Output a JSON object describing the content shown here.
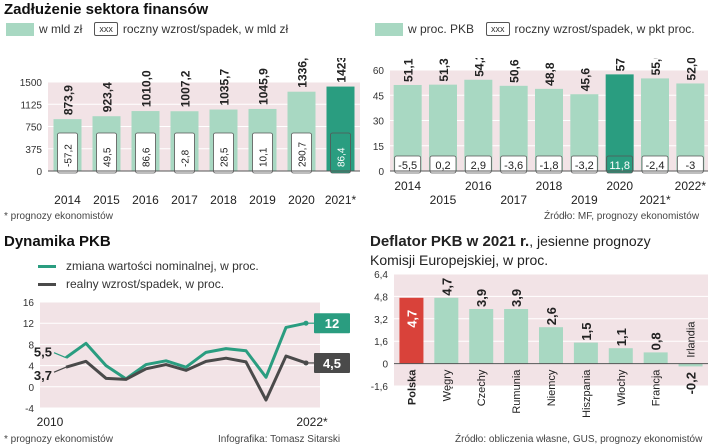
{
  "colors": {
    "bar": "#a8d8c2",
    "highlight": "#2a9d80",
    "band": "#f2e3e6",
    "teal_line": "#2a9d80",
    "gray_line": "#4a4a4a",
    "red_bar": "#d9423a"
  },
  "header": {
    "title": "Zadłużenie sektora finansów"
  },
  "legend_top": {
    "mld": "w mld zł",
    "growth_mld": "roczny wzrost/spadek, w mld zł",
    "pkb": "w proc. PKB",
    "growth_pkt": "roczny wzrost/spadek, w pkt proc.",
    "box": "xxx"
  },
  "notes": {
    "forecast1": "* prognozy ekonomistów",
    "source1": "Źródło: MF, prognozy ekonomistów",
    "forecast2": "* prognozy ekonomistów",
    "credit": "Infografika: Tomasz Sitarski",
    "source2": "Źródło: obliczenia własne, GUS, prognozy ekonomistów"
  },
  "sections": {
    "gdp": "Dynamika PKB",
    "deflator_bold": "Deflator PKB w 2021 r.",
    "deflator_rest": ", jesienne prognozy",
    "deflator_line2": "Komisji Europejskiej, w proc."
  },
  "legend_gdp": {
    "nominal": "zmiana wartości nominalnej, w proc.",
    "real": "realny wzrost/spadek, w proc."
  },
  "chart_data": [
    {
      "type": "bar",
      "title": "Zadłużenie sektora finansów",
      "ylabel": "w mld zł",
      "categories": [
        "2014",
        "2015",
        "2016",
        "2017",
        "2018",
        "2019",
        "2020",
        "2021*"
      ],
      "values": [
        873.9,
        923.4,
        1010.0,
        1007.2,
        1035.7,
        1045.9,
        1336.6,
        1423.0
      ],
      "value_labels": [
        "873,9",
        "923,4",
        "1010,0",
        "1007,2",
        "1035,7",
        "1045,9",
        "1336,6",
        "1423,0"
      ],
      "changes": [
        "-57,2",
        "49,5",
        "86,6",
        "-2,8",
        "28,5",
        "10,1",
        "290,7",
        "86,4"
      ],
      "ylim": [
        0,
        1500
      ],
      "yticks": [
        0,
        375,
        750,
        1125,
        1500
      ]
    },
    {
      "type": "bar",
      "ylabel": "w proc. PKB",
      "categories": [
        "2014",
        "2015",
        "2016",
        "2017",
        "2018",
        "2019",
        "2020",
        "2021*",
        "2022*"
      ],
      "values": [
        51.1,
        51.3,
        54.2,
        50.6,
        48.8,
        45.6,
        57.4,
        55.0,
        52.0
      ],
      "value_labels": [
        "51,1",
        "51,3",
        "54,2",
        "50,6",
        "48,8",
        "45,6",
        "57,4",
        "55,0",
        "52,0"
      ],
      "changes": [
        "-5,5",
        "0,2",
        "2,9",
        "-3,6",
        "-1,8",
        "-3,2",
        "11,8",
        "-2,4",
        "-3"
      ],
      "ylim": [
        0,
        60
      ],
      "yticks": [
        0,
        15,
        30,
        45,
        60
      ]
    },
    {
      "type": "line",
      "title": "Dynamika PKB",
      "x": [
        2010,
        2011,
        2012,
        2013,
        2014,
        2015,
        2016,
        2017,
        2018,
        2019,
        2020,
        2021,
        2022
      ],
      "x_labels": [
        "2010",
        "2022*"
      ],
      "series": [
        {
          "name": "zmiana wartości nominalnej, w proc.",
          "values": [
            5.5,
            8.2,
            4.0,
            1.5,
            4.2,
            4.9,
            3.7,
            6.5,
            7.2,
            6.8,
            1.8,
            11.2,
            12.0
          ],
          "start_label": "5,5",
          "end_label": "12"
        },
        {
          "name": "realny wzrost/spadek, w proc.",
          "values": [
            3.7,
            4.8,
            1.6,
            1.4,
            3.4,
            4.2,
            3.1,
            4.8,
            5.4,
            4.7,
            -2.5,
            5.8,
            4.5
          ],
          "start_label": "3,7",
          "end_label": "4,5"
        }
      ],
      "ylim": [
        -4,
        16
      ],
      "yticks": [
        "-4",
        "0",
        "4",
        "8",
        "12",
        "16"
      ]
    },
    {
      "type": "bar",
      "title": "Deflator PKB w 2021 r., jesienne prognozy Komisji Europejskiej, w proc.",
      "categories": [
        "Polska",
        "Węgry",
        "Czechy",
        "Rumunia",
        "Niemcy",
        "Hiszpania",
        "Włochy",
        "Francja",
        "Irlandia"
      ],
      "values": [
        4.7,
        4.7,
        3.9,
        3.9,
        2.6,
        1.5,
        1.1,
        0.8,
        -0.2
      ],
      "value_labels": [
        "4,7",
        "4,7",
        "3,9",
        "3,9",
        "2,6",
        "1,5",
        "1,1",
        "0,8",
        "-0,2"
      ],
      "ylim": [
        -1.6,
        6.4
      ],
      "yticks": [
        "-1.6",
        "0",
        "1.6",
        "3.2",
        "4.8",
        "6.4"
      ]
    }
  ]
}
